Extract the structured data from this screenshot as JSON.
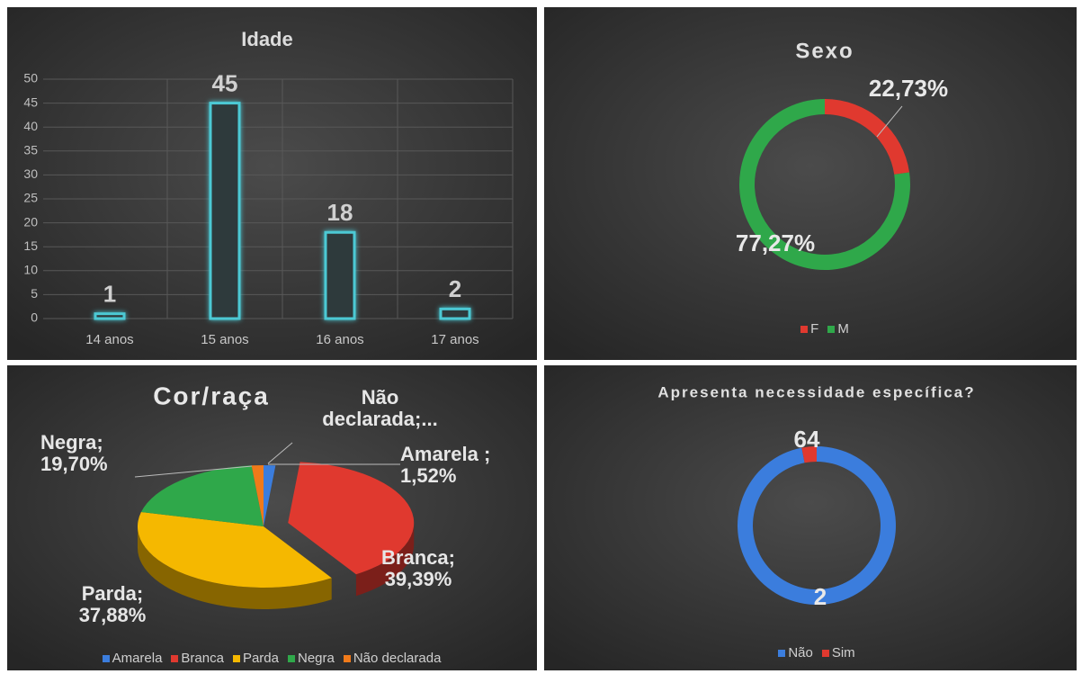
{
  "chart_data": [
    {
      "type": "bar",
      "title": "Idade",
      "categories": [
        "14 anos",
        "15 anos",
        "16 anos",
        "17 anos"
      ],
      "values": [
        1,
        45,
        18,
        2
      ],
      "color": "#4cc9d4",
      "ylim": [
        0,
        50
      ],
      "yticks": [
        0,
        5,
        10,
        15,
        20,
        25,
        30,
        35,
        40,
        45,
        50
      ],
      "grid": true
    },
    {
      "type": "donut",
      "title": "Sexo",
      "categories": [
        "F",
        "M"
      ],
      "values": [
        22.73,
        77.27
      ],
      "value_labels": [
        "22,73%",
        "77,27%"
      ],
      "colors": [
        "#e0392f",
        "#2fa84a"
      ],
      "legend": "bottom"
    },
    {
      "type": "pie3d",
      "title": "Cor/raça",
      "categories": [
        "Amarela",
        "Branca",
        "Parda",
        "Negra",
        "Não declarada"
      ],
      "values": [
        1.52,
        39.39,
        37.88,
        19.7,
        1.52
      ],
      "value_labels": [
        "Amarela ; 1,52%",
        "Branca; 39,39%",
        "Parda; 37,88%",
        "Negra; 19,70%",
        "Não declarada;..."
      ],
      "colors": [
        "#3b7ddd",
        "#e0392f",
        "#f5b800",
        "#2fa84a",
        "#f07a1a"
      ],
      "legend": "bottom"
    },
    {
      "type": "donut",
      "title": "Apresenta necessidade específica?",
      "categories": [
        "Não",
        "Sim"
      ],
      "values": [
        64,
        2
      ],
      "colors": [
        "#3b7ddd",
        "#e0392f"
      ],
      "legend": "bottom"
    }
  ]
}
